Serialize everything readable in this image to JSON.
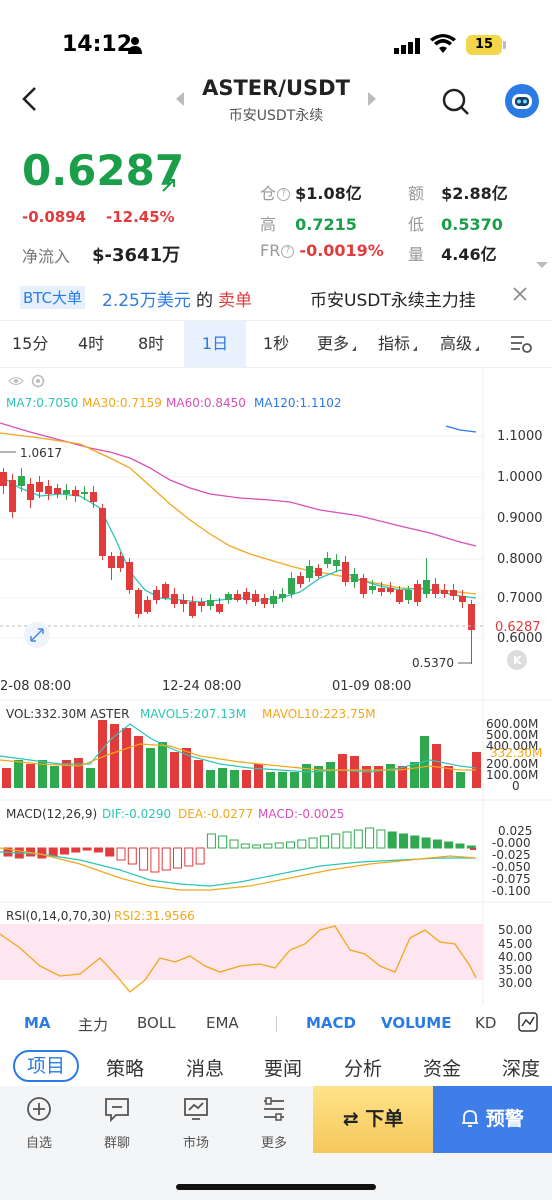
{
  "status": {
    "time": "14:12",
    "battery": "15"
  },
  "header": {
    "pair": "ASTER/USDT",
    "sub": "币安USDT永续"
  },
  "price": {
    "last": "0.6287",
    "change": "-0.0894",
    "change_pct": "-12.45%",
    "inflow_label": "净流入",
    "inflow_value": "$-3641万"
  },
  "stats": {
    "oi_label": "仓",
    "oi_value": "$1.08亿",
    "amt_label": "额",
    "amt_value": "$2.88亿",
    "high_label": "高",
    "high_value": "0.7215",
    "low_label": "低",
    "low_value": "0.5370",
    "fr_label": "FR",
    "fr_value": "-0.0019%",
    "vol_label": "量",
    "vol_value": "4.46亿"
  },
  "ticker": {
    "tag": "BTC大单",
    "amount": "2.25万美元",
    "of": "的",
    "side": "卖单",
    "next": "币安USDT永续主力挂"
  },
  "intervals": [
    "15分",
    "4时",
    "8时",
    "1日",
    "1秒",
    "更多",
    "指标",
    "高级"
  ],
  "chart": {
    "ma_legend": {
      "ma7": "MA7:0.7050",
      "ma30": "MA30:0.7159",
      "ma60": "MA60:0.8450",
      "ma120": "MA120:1.1102"
    },
    "price_ticks": [
      "1.1000",
      "1.0000",
      "0.9000",
      "0.8000",
      "0.7000",
      "0.6000"
    ],
    "last_price_tag": "0.6287",
    "high_mark": "1.0617",
    "low_mark": "0.5370",
    "dates": [
      "2-08 08:00",
      "12-24 08:00",
      "01-09 08:00"
    ],
    "vol_legend": {
      "vol": "VOL:332.30M ASTER",
      "mavol5": "MAVOL5:207.13M",
      "mavol10": "MAVOL10:223.75M"
    },
    "vol_ticks": [
      "600.00M",
      "500.00M",
      "400.00M",
      "200.00M",
      "100.00M",
      "0"
    ],
    "vol_last": "332.30M",
    "macd_legend": {
      "macd": "MACD(12,26,9)",
      "dif": "DIF:-0.0290",
      "dea": "DEA:-0.0277",
      "hist": "MACD:-0.0025"
    },
    "macd_ticks": [
      "0.025",
      "-0.000",
      "-0.025",
      "-0.050",
      "-0.075",
      "-0.100"
    ],
    "rsi_legend": {
      "rsi": "RSI(0,14,0,70,30)",
      "rsi2": "RSI2:31.9566"
    },
    "rsi_ticks": [
      "50.00",
      "45.00",
      "40.00",
      "35.00",
      "30.00"
    ],
    "colors": {
      "up": "#2fa84f",
      "down": "#e23b3b",
      "ma7": "#2ec4b6",
      "ma30": "#f2a71b",
      "ma60": "#d94fb8",
      "ma120": "#2a7be4"
    }
  },
  "indicators": [
    "MA",
    "主力",
    "BOLL",
    "EMA",
    "MACD",
    "VOLUME",
    "KD"
  ],
  "content_tabs": [
    "项目",
    "策略",
    "消息",
    "要闻",
    "分析",
    "资金",
    "深度"
  ],
  "nav": {
    "watch": "自选",
    "chat": "群聊",
    "market": "市场",
    "more": "更多",
    "order": "下单",
    "alert": "预警"
  }
}
